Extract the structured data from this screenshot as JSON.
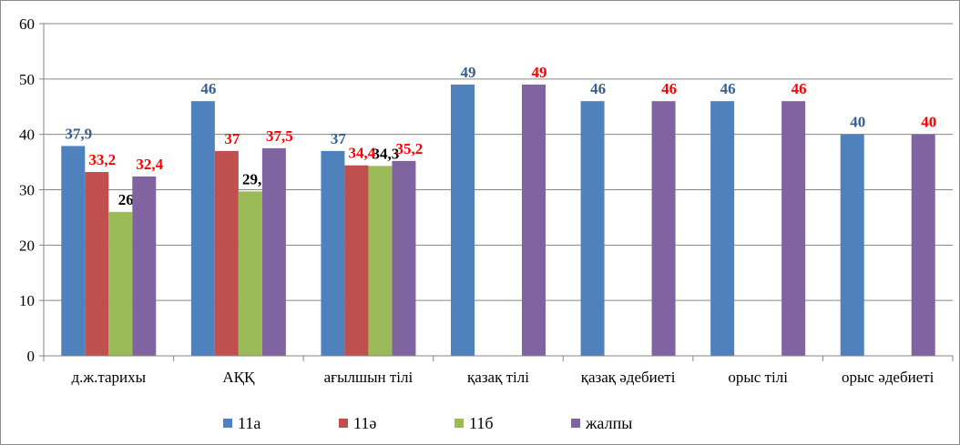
{
  "chart_data": {
    "type": "bar",
    "title": "",
    "xlabel": "",
    "ylabel": "",
    "ylim": [
      0,
      60
    ],
    "yticks": [
      0,
      10,
      20,
      30,
      40,
      50,
      60
    ],
    "grid": true,
    "legend_position": "bottom",
    "categories": [
      "д.ж.тарихы",
      "АҚҚ",
      "ағылшын тілі",
      "қазақ тілі",
      "қазақ әдебиеті",
      "орыс тілі",
      "орыс әдебиеті"
    ],
    "series": [
      {
        "name": "11а",
        "color": "#4f81bd",
        "label_color": "#376092",
        "values": [
          37.9,
          46,
          37,
          49,
          46,
          46,
          40
        ],
        "labels": [
          "37,9",
          "46",
          "37",
          "49",
          "46",
          "46",
          "40"
        ]
      },
      {
        "name": "11ә",
        "color": "#c0504d",
        "label_color": "#ff0000",
        "values": [
          33.2,
          37,
          34.4,
          null,
          null,
          null,
          null
        ],
        "labels": [
          "33,2",
          "37",
          "34,4",
          null,
          null,
          null,
          null
        ]
      },
      {
        "name": "11б",
        "color": "#9bbb59",
        "label_color": "#000000",
        "values": [
          26,
          29.7,
          34.3,
          null,
          null,
          null,
          null
        ],
        "labels": [
          "26",
          "29,7",
          "34,3",
          null,
          null,
          null,
          null
        ]
      },
      {
        "name": "жалпы",
        "color": "#8064a2",
        "label_color": "#ff0000",
        "values": [
          32.4,
          37.5,
          35.2,
          49,
          46,
          46,
          40
        ],
        "labels": [
          "32,4",
          "37,5",
          "35,2",
          "49",
          "46",
          "46",
          "40"
        ]
      }
    ]
  }
}
